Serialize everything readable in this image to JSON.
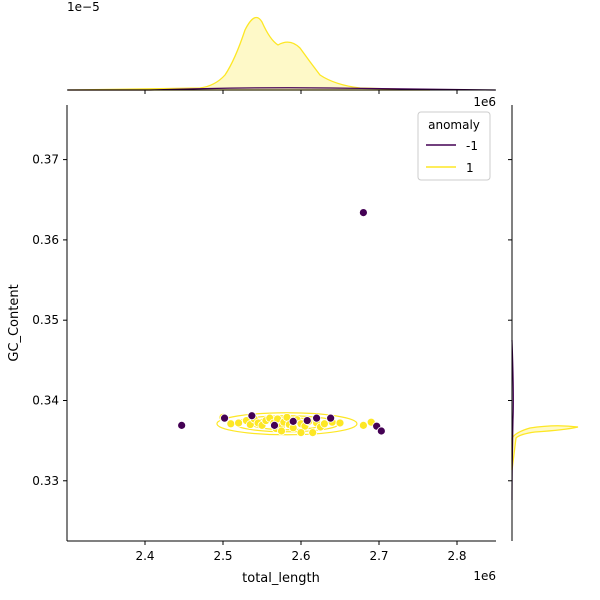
{
  "chart_data": {
    "type": "scatter",
    "xlabel": "total_length",
    "ylabel": "GC_Content",
    "x_offset_label": "1e6",
    "y_offset_label": "1e6",
    "top_marginal_offset_label": "1e−5",
    "xlim": [
      2.3,
      2.85
    ],
    "ylim": [
      0.3225,
      0.3768
    ],
    "x_ticks": [
      2.4,
      2.5,
      2.6,
      2.7,
      2.8
    ],
    "x_tick_labels": [
      "2.4",
      "2.5",
      "2.6",
      "2.7",
      "2.8"
    ],
    "y_ticks": [
      0.33,
      0.34,
      0.35,
      0.36,
      0.37
    ],
    "y_tick_labels": [
      "0.33",
      "0.34",
      "0.35",
      "0.36",
      "0.37"
    ],
    "legend": {
      "title": "anomaly",
      "placement": "top-right",
      "entries": [
        {
          "label": "-1",
          "color": "#440154"
        },
        {
          "label": "1",
          "color": "#fde725"
        }
      ]
    },
    "series": [
      {
        "name": "-1",
        "color": "#440154",
        "points": [
          [
            2.447,
            0.3369
          ],
          [
            2.502,
            0.3378
          ],
          [
            2.537,
            0.3381
          ],
          [
            2.566,
            0.3369
          ],
          [
            2.59,
            0.3374
          ],
          [
            2.608,
            0.3375
          ],
          [
            2.62,
            0.3378
          ],
          [
            2.638,
            0.3378
          ],
          [
            2.68,
            0.3634
          ],
          [
            2.697,
            0.3368
          ],
          [
            2.703,
            0.3362
          ]
        ]
      },
      {
        "name": "1",
        "color": "#fde725",
        "points": [
          [
            2.5,
            0.3379
          ],
          [
            2.51,
            0.3371
          ],
          [
            2.52,
            0.3372
          ],
          [
            2.53,
            0.3375
          ],
          [
            2.535,
            0.337
          ],
          [
            2.54,
            0.3377
          ],
          [
            2.545,
            0.3372
          ],
          [
            2.55,
            0.3369
          ],
          [
            2.555,
            0.3375
          ],
          [
            2.56,
            0.3378
          ],
          [
            2.565,
            0.3372
          ],
          [
            2.568,
            0.3365
          ],
          [
            2.57,
            0.3377
          ],
          [
            2.575,
            0.3368
          ],
          [
            2.578,
            0.3373
          ],
          [
            2.582,
            0.3379
          ],
          [
            2.585,
            0.337
          ],
          [
            2.59,
            0.3366
          ],
          [
            2.595,
            0.3376
          ],
          [
            2.6,
            0.3371
          ],
          [
            2.605,
            0.3368
          ],
          [
            2.61,
            0.3374
          ],
          [
            2.615,
            0.336
          ],
          [
            2.62,
            0.3372
          ],
          [
            2.625,
            0.3367
          ],
          [
            2.63,
            0.3371
          ],
          [
            2.64,
            0.3373
          ],
          [
            2.65,
            0.3372
          ],
          [
            2.68,
            0.3369
          ],
          [
            2.69,
            0.3373
          ],
          [
            2.6,
            0.336
          ],
          [
            2.575,
            0.3362
          ]
        ]
      }
    ]
  }
}
